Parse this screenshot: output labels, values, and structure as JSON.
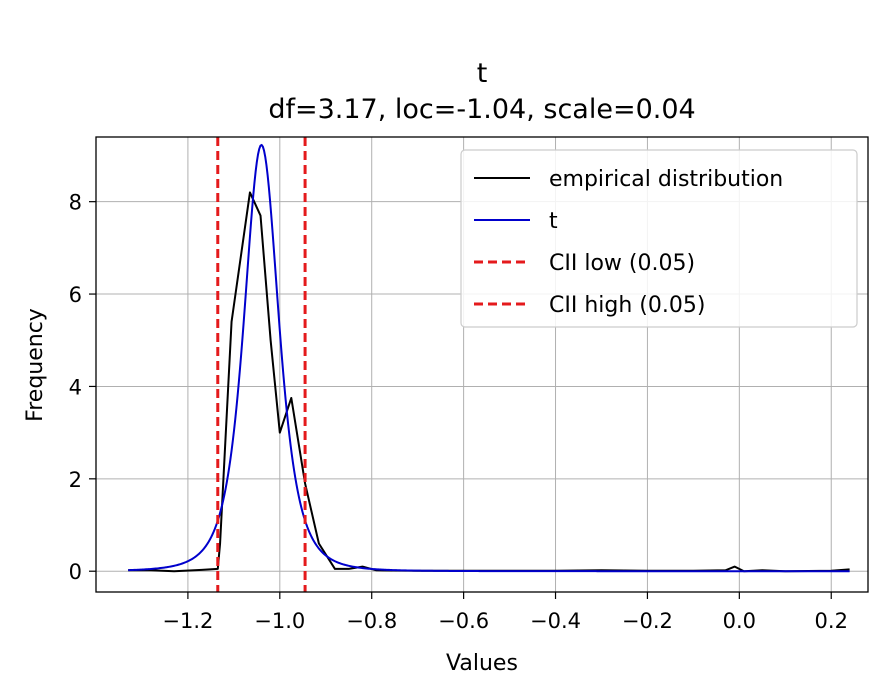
{
  "chart_data": {
    "type": "line",
    "title": "t",
    "subtitle": "df=3.17, loc=-1.04, scale=0.04",
    "xlabel": "Values",
    "ylabel": "Frequency",
    "xlim": [
      -1.4,
      0.28
    ],
    "ylim": [
      -0.45,
      9.4
    ],
    "xticks": [
      -1.2,
      -1.0,
      -0.8,
      -0.6,
      -0.4,
      -0.2,
      0.0,
      0.2
    ],
    "xtick_labels": [
      "−1.2",
      "−1.0",
      "−0.8",
      "−0.6",
      "−0.4",
      "−0.2",
      "0.0",
      "0.2"
    ],
    "yticks": [
      0,
      2,
      4,
      6,
      8
    ],
    "ytick_labels": [
      "0",
      "2",
      "4",
      "6",
      "8"
    ],
    "grid": true,
    "legend_position": "top-right",
    "series": [
      {
        "name": "empirical distribution",
        "color": "#000000",
        "style": "solid",
        "x": [
          -1.33,
          -1.28,
          -1.23,
          -1.17,
          -1.135,
          -1.13,
          -1.105,
          -1.065,
          -1.042,
          -1.02,
          -1.0,
          -0.975,
          -0.945,
          -0.915,
          -0.88,
          -0.85,
          -0.82,
          -0.79,
          -0.7,
          -0.6,
          -0.5,
          -0.4,
          -0.3,
          -0.2,
          -0.1,
          -0.03,
          -0.01,
          0.01,
          0.05,
          0.1,
          0.2,
          0.24
        ],
        "y": [
          0.02,
          0.02,
          0.0,
          0.03,
          0.05,
          0.6,
          5.4,
          8.2,
          7.7,
          5.0,
          3.0,
          3.75,
          1.9,
          0.6,
          0.05,
          0.05,
          0.1,
          0.02,
          0.01,
          0.01,
          0.01,
          0.01,
          0.02,
          0.01,
          0.01,
          0.02,
          0.1,
          0.0,
          0.02,
          0.0,
          0.01,
          0.04
        ]
      },
      {
        "name": "t",
        "color": "#0000cc",
        "style": "solid",
        "df": 3.17,
        "loc": -1.04,
        "scale": 0.04,
        "x_range": [
          -1.33,
          0.24
        ]
      },
      {
        "name": "CII low (0.05)",
        "color": "#e41a1c",
        "style": "dashed",
        "x": -1.135
      },
      {
        "name": "CII high (0.05)",
        "color": "#e41a1c",
        "style": "dashed",
        "x": -0.945
      }
    ]
  }
}
